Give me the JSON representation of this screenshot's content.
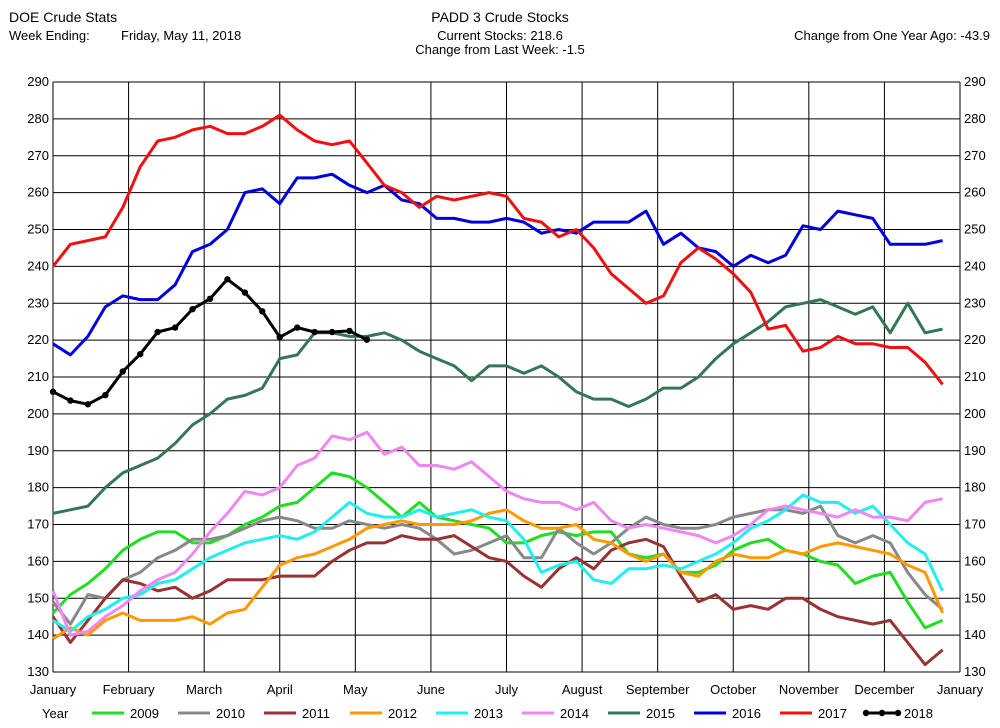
{
  "header": {
    "left_title": "DOE Crude Stats",
    "week_ending_label": "Week Ending:",
    "week_ending_value": "Friday, May 11, 2018",
    "center_title": "PADD 3 Crude Stocks",
    "current_stocks": "Current Stocks: 218.6",
    "change_last_week": "Change from Last Week:  -1.5",
    "change_year_ago": "Change from One Year Ago: -43.9"
  },
  "chart_data": {
    "type": "line",
    "title": "PADD 3 Crude Stocks",
    "ylim": [
      130,
      290
    ],
    "yticks": [
      130,
      140,
      150,
      160,
      170,
      180,
      190,
      200,
      210,
      220,
      230,
      240,
      250,
      260,
      270,
      280,
      290
    ],
    "x_unit": "week of year",
    "xlim": [
      0,
      52
    ],
    "month_labels": [
      "January",
      "February",
      "March",
      "April",
      "May",
      "June",
      "July",
      "August",
      "September",
      "October",
      "November",
      "December",
      "January"
    ],
    "grid": true,
    "legend_title": "Year",
    "legend_position": "bottom",
    "series": [
      {
        "name": "2009",
        "color": "#22dd22",
        "markers": false,
        "x": [
          0,
          1,
          2,
          3,
          4,
          5,
          6,
          7,
          8,
          9,
          10,
          11,
          12,
          13,
          14,
          15,
          16,
          17,
          18,
          19,
          20,
          21,
          22,
          23,
          24,
          25,
          26,
          27,
          28,
          29,
          30,
          31,
          32,
          33,
          34,
          35,
          36,
          37,
          38,
          39,
          40,
          41,
          42,
          43,
          44,
          45,
          46,
          47,
          48,
          49,
          50,
          51
        ],
        "y": [
          146,
          151,
          154,
          158,
          163,
          166,
          168,
          168,
          165,
          165,
          167,
          170,
          172,
          175,
          176,
          180,
          184,
          183,
          180,
          176,
          172,
          176,
          172,
          171,
          170,
          169,
          165,
          165,
          167,
          168,
          167,
          168,
          168,
          162,
          161,
          162,
          157,
          157,
          159,
          163,
          165,
          166,
          163,
          162,
          160,
          159,
          154,
          156,
          157,
          149,
          142,
          144
        ]
      },
      {
        "name": "2010",
        "color": "#888888",
        "markers": false,
        "x": [
          0,
          1,
          2,
          3,
          4,
          5,
          6,
          7,
          8,
          9,
          10,
          11,
          12,
          13,
          14,
          15,
          16,
          17,
          18,
          19,
          20,
          21,
          22,
          23,
          24,
          25,
          26,
          27,
          28,
          29,
          30,
          31,
          32,
          33,
          34,
          35,
          36,
          37,
          38,
          39,
          40,
          41,
          42,
          43,
          44,
          45,
          46,
          47,
          48,
          49,
          50,
          51
        ],
        "y": [
          149,
          143,
          151,
          150,
          155,
          157,
          161,
          163,
          166,
          166,
          167,
          169,
          171,
          172,
          171,
          169,
          169,
          171,
          170,
          169,
          170,
          169,
          166,
          162,
          163,
          165,
          167,
          161,
          161,
          169,
          165,
          162,
          165,
          169,
          172,
          170,
          169,
          169,
          170,
          172,
          173,
          174,
          174,
          173,
          175,
          167,
          165,
          167,
          165,
          157,
          151,
          147
        ]
      },
      {
        "name": "2011",
        "color": "#993333",
        "markers": false,
        "x": [
          0,
          1,
          2,
          3,
          4,
          5,
          6,
          7,
          8,
          9,
          10,
          11,
          12,
          13,
          14,
          15,
          16,
          17,
          18,
          19,
          20,
          21,
          22,
          23,
          24,
          25,
          26,
          27,
          28,
          29,
          30,
          31,
          32,
          33,
          34,
          35,
          36,
          37,
          38,
          39,
          40,
          41,
          42,
          43,
          44,
          45,
          46,
          47,
          48,
          49,
          50,
          51
        ],
        "y": [
          145,
          138,
          144,
          150,
          155,
          154,
          152,
          153,
          150,
          152,
          155,
          155,
          155,
          156,
          156,
          156,
          160,
          163,
          165,
          165,
          167,
          166,
          166,
          167,
          164,
          161,
          160,
          156,
          153,
          158,
          161,
          158,
          163,
          165,
          166,
          164,
          156,
          149,
          151,
          147,
          148,
          147,
          150,
          150,
          147,
          145,
          144,
          143,
          144,
          138,
          132,
          136
        ]
      },
      {
        "name": "2012",
        "color": "#ff9900",
        "markers": false,
        "x": [
          0,
          1,
          2,
          3,
          4,
          5,
          6,
          7,
          8,
          9,
          10,
          11,
          12,
          13,
          14,
          15,
          16,
          17,
          18,
          19,
          20,
          21,
          22,
          23,
          24,
          25,
          26,
          27,
          28,
          29,
          30,
          31,
          32,
          33,
          34,
          35,
          36,
          37,
          38,
          39,
          40,
          41,
          42,
          43,
          44,
          45,
          46,
          47,
          48,
          49,
          50,
          51
        ],
        "y": [
          139,
          142,
          140,
          144,
          146,
          144,
          144,
          144,
          145,
          143,
          146,
          147,
          153,
          159,
          161,
          162,
          164,
          166,
          169,
          170,
          171,
          170,
          170,
          170,
          171,
          173,
          174,
          171,
          169,
          169,
          170,
          166,
          165,
          162,
          160,
          162,
          157,
          156,
          160,
          162,
          161,
          161,
          163,
          162,
          164,
          165,
          164,
          163,
          162,
          159,
          157,
          146
        ]
      },
      {
        "name": "2013",
        "color": "#22eeee",
        "markers": false,
        "x": [
          0,
          1,
          2,
          3,
          4,
          5,
          6,
          7,
          8,
          9,
          10,
          11,
          12,
          13,
          14,
          15,
          16,
          17,
          18,
          19,
          20,
          21,
          22,
          23,
          24,
          25,
          26,
          27,
          28,
          29,
          30,
          31,
          32,
          33,
          34,
          35,
          36,
          37,
          38,
          39,
          40,
          41,
          42,
          43,
          44,
          45,
          46,
          47,
          48,
          49,
          50,
          51
        ],
        "y": [
          144,
          141,
          145,
          147,
          150,
          151,
          154,
          155,
          158,
          161,
          163,
          165,
          166,
          167,
          166,
          168,
          172,
          176,
          173,
          172,
          172,
          174,
          172,
          173,
          174,
          172,
          171,
          166,
          157,
          159,
          160,
          155,
          154,
          158,
          158,
          159,
          158,
          160,
          162,
          165,
          169,
          171,
          174,
          178,
          176,
          176,
          173,
          175,
          170,
          165,
          162,
          152
        ]
      },
      {
        "name": "2014",
        "color": "#ee88ee",
        "markers": false,
        "x": [
          0,
          1,
          2,
          3,
          4,
          5,
          6,
          7,
          8,
          9,
          10,
          11,
          12,
          13,
          14,
          15,
          16,
          17,
          18,
          19,
          20,
          21,
          22,
          23,
          24,
          25,
          26,
          27,
          28,
          29,
          30,
          31,
          32,
          33,
          34,
          35,
          36,
          37,
          38,
          39,
          40,
          41,
          42,
          43,
          44,
          45,
          46,
          47,
          48,
          49,
          50,
          51
        ],
        "y": [
          152,
          140,
          141,
          145,
          148,
          152,
          155,
          157,
          162,
          168,
          173,
          179,
          178,
          180,
          186,
          188,
          194,
          193,
          195,
          189,
          191,
          186,
          186,
          185,
          187,
          183,
          179,
          177,
          176,
          176,
          174,
          176,
          171,
          169,
          170,
          169,
          168,
          167,
          165,
          167,
          170,
          174,
          175,
          174,
          173,
          172,
          174,
          172,
          172,
          171,
          176,
          177
        ]
      },
      {
        "name": "2015",
        "color": "#337755",
        "markers": false,
        "x": [
          0,
          1,
          2,
          3,
          4,
          5,
          6,
          7,
          8,
          9,
          10,
          11,
          12,
          13,
          14,
          15,
          16,
          17,
          18,
          19,
          20,
          21,
          22,
          23,
          24,
          25,
          26,
          27,
          28,
          29,
          30,
          31,
          32,
          33,
          34,
          35,
          36,
          37,
          38,
          39,
          40,
          41,
          42,
          43,
          44,
          45,
          46,
          47,
          48,
          49,
          50,
          51
        ],
        "y": [
          173,
          174,
          175,
          180,
          184,
          186,
          188,
          192,
          197,
          200,
          204,
          205,
          207,
          215,
          216,
          222,
          222,
          221,
          221,
          222,
          220,
          217,
          215,
          213,
          209,
          213,
          213,
          211,
          213,
          210,
          206,
          204,
          204,
          202,
          204,
          207,
          207,
          210,
          215,
          219,
          222,
          225,
          229,
          230,
          231,
          229,
          227,
          229,
          222,
          230,
          222,
          223
        ]
      },
      {
        "name": "2016",
        "color": "#0000dd",
        "markers": false,
        "x": [
          0,
          1,
          2,
          3,
          4,
          5,
          6,
          7,
          8,
          9,
          10,
          11,
          12,
          13,
          14,
          15,
          16,
          17,
          18,
          19,
          20,
          21,
          22,
          23,
          24,
          25,
          26,
          27,
          28,
          29,
          30,
          31,
          32,
          33,
          34,
          35,
          36,
          37,
          38,
          39,
          40,
          41,
          42,
          43,
          44,
          45,
          46,
          47,
          48,
          49,
          50,
          51
        ],
        "y": [
          219,
          216,
          221,
          229,
          232,
          231,
          231,
          235,
          244,
          246,
          250,
          260,
          261,
          257,
          264,
          264,
          265,
          262,
          260,
          262,
          258,
          257,
          253,
          253,
          252,
          252,
          253,
          252,
          249,
          250,
          249,
          252,
          252,
          252,
          255,
          246,
          249,
          245,
          244,
          240,
          243,
          241,
          243,
          251,
          250,
          255,
          254,
          253,
          246,
          246,
          246,
          247
        ]
      },
      {
        "name": "2017",
        "color": "#ee1111",
        "markers": false,
        "x": [
          0,
          1,
          2,
          3,
          4,
          5,
          6,
          7,
          8,
          9,
          10,
          11,
          12,
          13,
          14,
          15,
          16,
          17,
          18,
          19,
          20,
          21,
          22,
          23,
          24,
          25,
          26,
          27,
          28,
          29,
          30,
          31,
          32,
          33,
          34,
          35,
          36,
          37,
          38,
          39,
          40,
          41,
          42,
          43,
          44,
          45,
          46,
          47,
          48,
          49,
          50,
          51
        ],
        "y": [
          240,
          246,
          247,
          248,
          256,
          267,
          274,
          275,
          277,
          278,
          276,
          276,
          278,
          281,
          277,
          274,
          273,
          274,
          268,
          262,
          260,
          256,
          259,
          258,
          259,
          260,
          259,
          253,
          252,
          248,
          250,
          245,
          238,
          234,
          230,
          232,
          241,
          245,
          242,
          238,
          233,
          223,
          224,
          217,
          218,
          221,
          219,
          219,
          218,
          218,
          214,
          208
        ]
      },
      {
        "name": "2018",
        "color": "#000000",
        "markers": true,
        "x": [
          0,
          1,
          2,
          3,
          4,
          5,
          6,
          7,
          8,
          9,
          10,
          11,
          12,
          13,
          14,
          15,
          16,
          17,
          18
        ],
        "y": [
          206,
          203.6,
          202.6,
          205.1,
          211.5,
          216.2,
          222.2,
          223.4,
          228.4,
          231.2,
          236.5,
          232.9,
          227.8,
          220.8,
          223.4,
          222.2,
          222.2,
          222.5,
          220.1
        ]
      }
    ]
  }
}
